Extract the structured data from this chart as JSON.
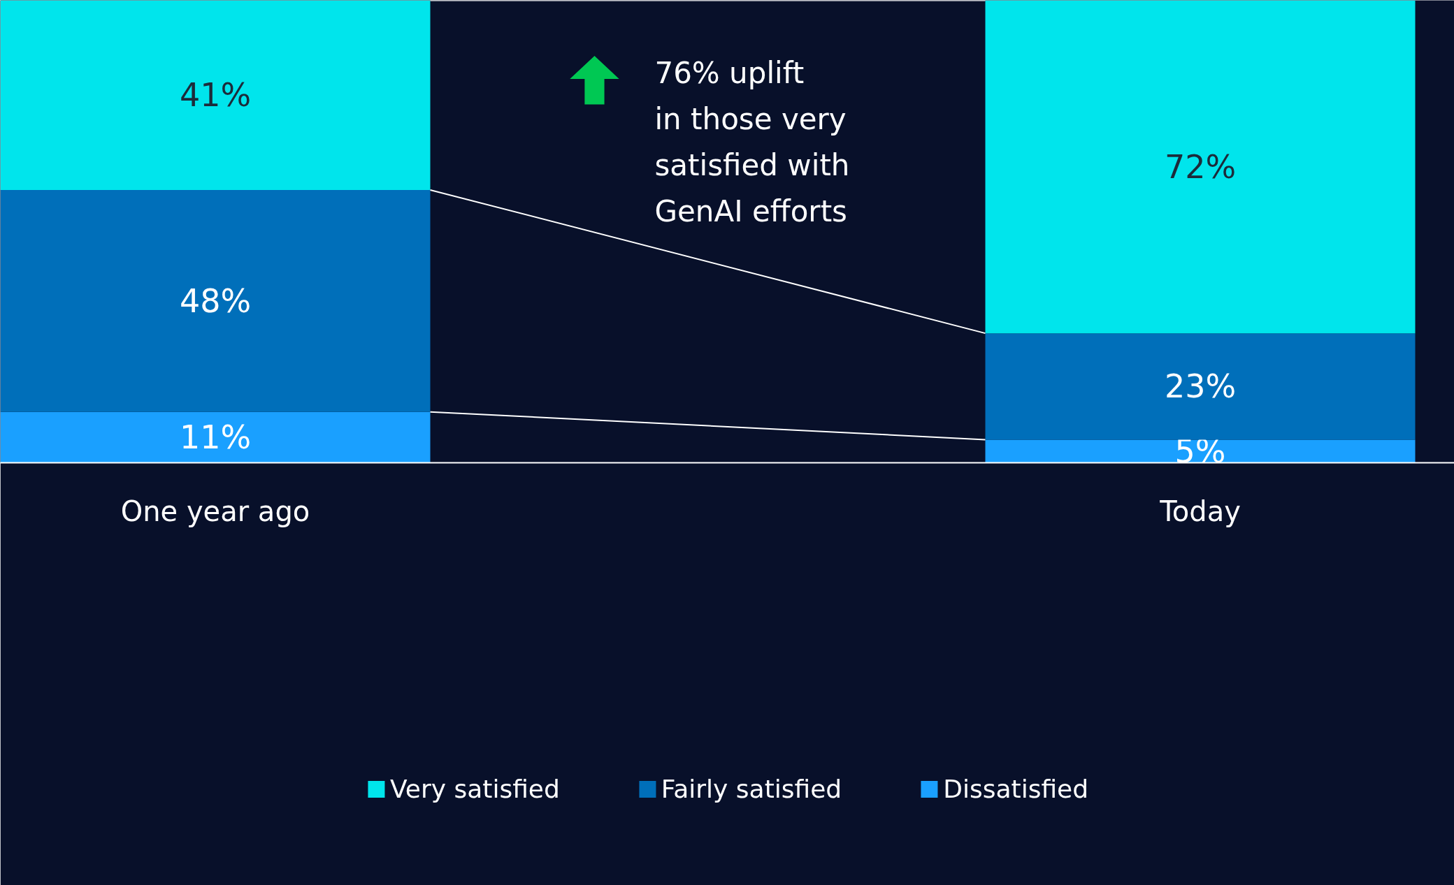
{
  "chart_data": {
    "type": "bar",
    "stacked": true,
    "categories": [
      "One year ago",
      "Today"
    ],
    "series": [
      {
        "name": "Dissatisfied",
        "color": "#1aa0ff",
        "values": [
          11,
          5
        ],
        "value_labels": [
          "11%",
          "5%"
        ]
      },
      {
        "name": "Fairly satisfied",
        "color": "#006fba",
        "values": [
          48,
          23
        ],
        "value_labels": [
          "48%",
          "23%"
        ]
      },
      {
        "name": "Very satisfied",
        "color": "#00e5ec",
        "values": [
          41,
          72
        ],
        "value_labels": [
          "41%",
          "72%"
        ]
      }
    ],
    "tick_labels": "x",
    "grid": false,
    "legend": "bottom",
    "annotations": [
      "76% uplift\nin those very\nsatisfied with\nGenAI efforts"
    ]
  }
}
